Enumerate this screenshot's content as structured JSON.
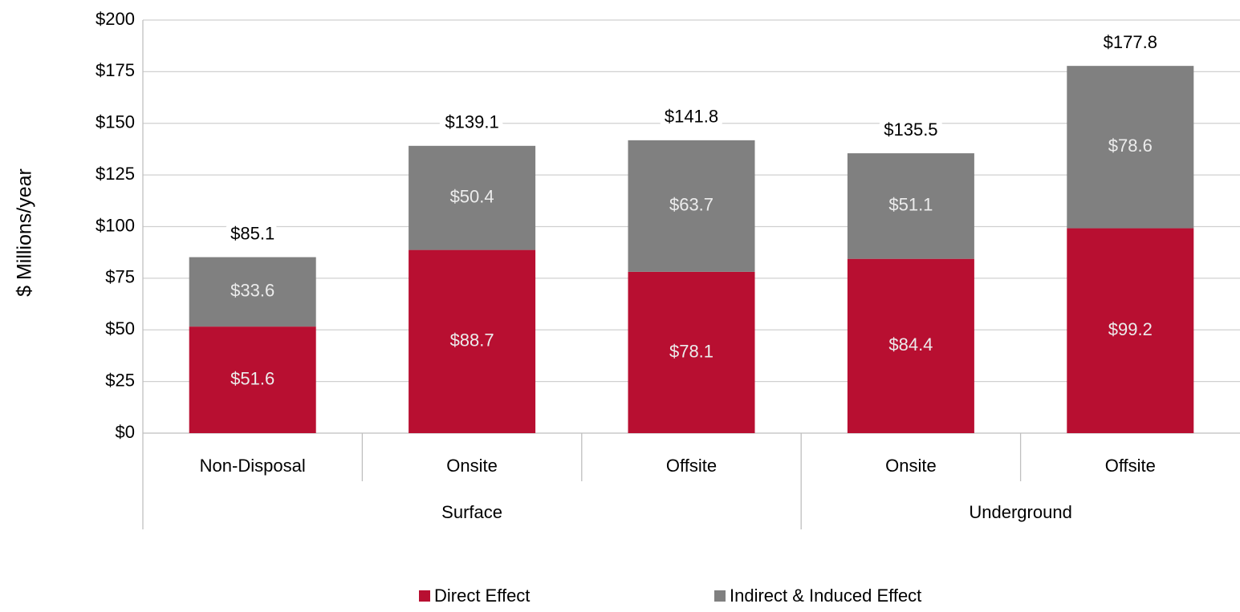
{
  "chart_data": {
    "type": "stacked_bar",
    "y_label": "$ Millions/year",
    "groups": [
      {
        "name": "Surface",
        "categories": [
          "Non-Disposal",
          "Onsite",
          "Offsite"
        ]
      },
      {
        "name": "Underground",
        "categories": [
          "Onsite",
          "Offsite"
        ]
      }
    ],
    "series": [
      {
        "name": "Direct Effect",
        "color": "#b80f31",
        "values": [
          51.6,
          88.7,
          78.1,
          84.4,
          99.2
        ],
        "value_labels": [
          "$51.6",
          "$88.7",
          "$78.1",
          "$84.4",
          "$99.2"
        ]
      },
      {
        "name": "Indirect & Induced Effect",
        "color": "#808080",
        "values": [
          33.6,
          50.4,
          63.7,
          51.1,
          78.6
        ],
        "value_labels": [
          "$33.6",
          "$50.4",
          "$63.7",
          "$51.1",
          "$78.6"
        ]
      }
    ],
    "totals": [
      85.1,
      139.1,
      141.8,
      135.5,
      177.8
    ],
    "total_labels": [
      "$85.1",
      "$139.1",
      "$141.8",
      "$135.5",
      "$177.8"
    ],
    "ylim": [
      0,
      200
    ],
    "yticks": [
      {
        "value": 0,
        "label": "$0"
      },
      {
        "value": 25,
        "label": "$25"
      },
      {
        "value": 50,
        "label": "$50"
      },
      {
        "value": 75,
        "label": "$75"
      },
      {
        "value": 100,
        "label": "$100"
      },
      {
        "value": 125,
        "label": "$125"
      },
      {
        "value": 150,
        "label": "$150"
      },
      {
        "value": 175,
        "label": "$175"
      },
      {
        "value": 200,
        "label": "$200"
      }
    ],
    "grid": true,
    "legend": "bottom"
  }
}
